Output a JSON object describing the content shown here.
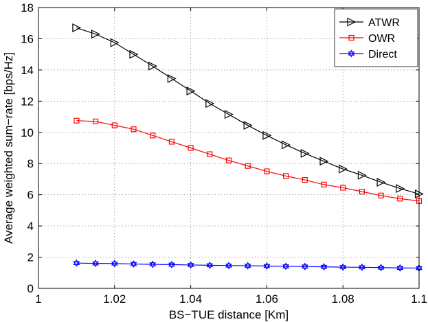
{
  "chart_data": {
    "type": "line",
    "title": "",
    "xlabel": "BS−TUE distance [Km]",
    "ylabel": "Average weighted sum−rate [bps/Hz]",
    "xlim": [
      1,
      1.1
    ],
    "ylim": [
      0,
      18
    ],
    "xticks": [
      1,
      1.02,
      1.04,
      1.06,
      1.08,
      1.1
    ],
    "xtick_labels": [
      "1",
      "1.02",
      "1.04",
      "1.06",
      "1.08",
      "1.1"
    ],
    "yticks": [
      0,
      2,
      4,
      6,
      8,
      10,
      12,
      14,
      16,
      18
    ],
    "ytick_labels": [
      "0",
      "2",
      "4",
      "6",
      "8",
      "10",
      "12",
      "14",
      "16",
      "18"
    ],
    "grid": true,
    "legend_position": "top-right",
    "x": [
      1.01,
      1.015,
      1.02,
      1.025,
      1.03,
      1.035,
      1.04,
      1.045,
      1.05,
      1.055,
      1.06,
      1.065,
      1.07,
      1.075,
      1.08,
      1.085,
      1.09,
      1.095,
      1.1
    ],
    "series": [
      {
        "name": "ATWR",
        "color": "#000000",
        "marker": "triangle-right",
        "values": [
          16.7,
          16.3,
          15.75,
          15.0,
          14.25,
          13.45,
          12.65,
          11.85,
          11.15,
          10.45,
          9.8,
          9.2,
          8.65,
          8.15,
          7.65,
          7.25,
          6.8,
          6.4,
          6.05
        ]
      },
      {
        "name": "OWR",
        "color": "#ff0000",
        "marker": "square",
        "values": [
          10.75,
          10.7,
          10.45,
          10.2,
          9.8,
          9.4,
          9.0,
          8.6,
          8.2,
          7.85,
          7.5,
          7.2,
          6.95,
          6.65,
          6.45,
          6.2,
          5.95,
          5.75,
          5.6
        ]
      },
      {
        "name": "Direct",
        "color": "#0000ff",
        "marker": "hexagram",
        "values": [
          1.62,
          1.6,
          1.59,
          1.56,
          1.54,
          1.52,
          1.5,
          1.48,
          1.46,
          1.45,
          1.43,
          1.41,
          1.4,
          1.38,
          1.36,
          1.35,
          1.33,
          1.31,
          1.3
        ]
      }
    ]
  }
}
